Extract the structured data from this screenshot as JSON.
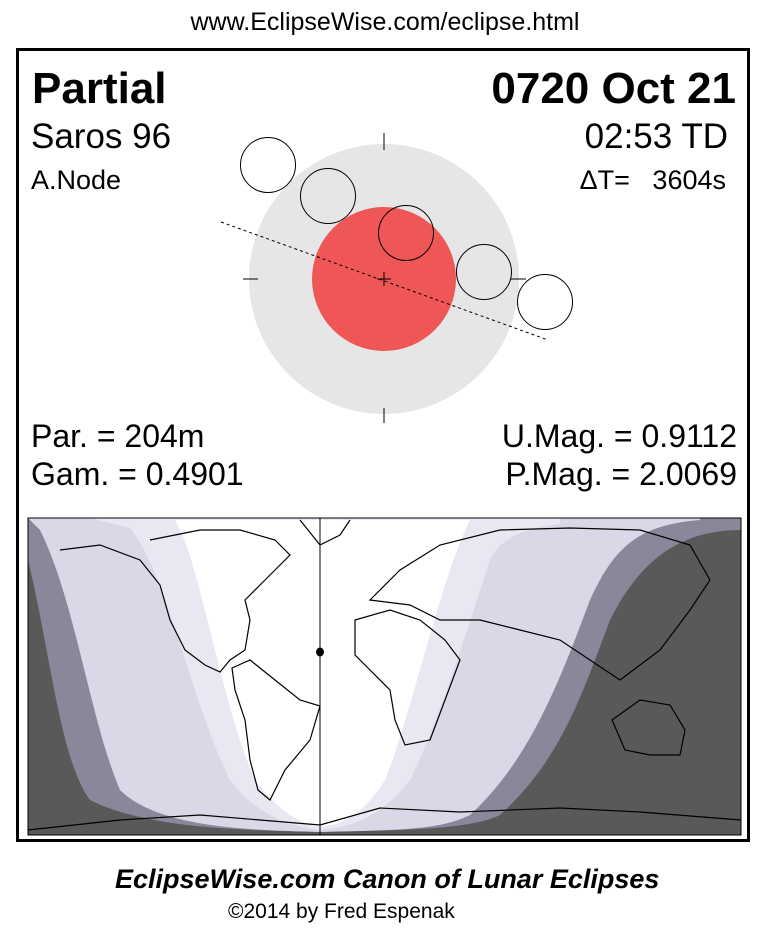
{
  "url": "www.EclipseWise.com/eclipse.html",
  "eclipse": {
    "type": "Partial",
    "date": "0720 Oct 21",
    "saros": "Saros  96",
    "time": "02:53 TD",
    "node": "A.Node",
    "delta_t": "ΔT=   3604s",
    "duration": "Par. = 204m",
    "umbral_mag": "U.Mag. = 0.9112",
    "gamma": "Gam. = 0.4901",
    "penumbral_mag": "P.Mag. = 2.0069"
  },
  "colors": {
    "umbra": "#ef5656",
    "penumbra": "#e6e6e6",
    "night": "#595959",
    "penumbral_zone": "#88889a",
    "partial_zone": "#d8d8e6",
    "light_zone": "#e8e8f2"
  },
  "footer": {
    "title": "EclipseWise.com Canon of Lunar Eclipses",
    "copyright": "©2014 by Fred Espenak"
  }
}
